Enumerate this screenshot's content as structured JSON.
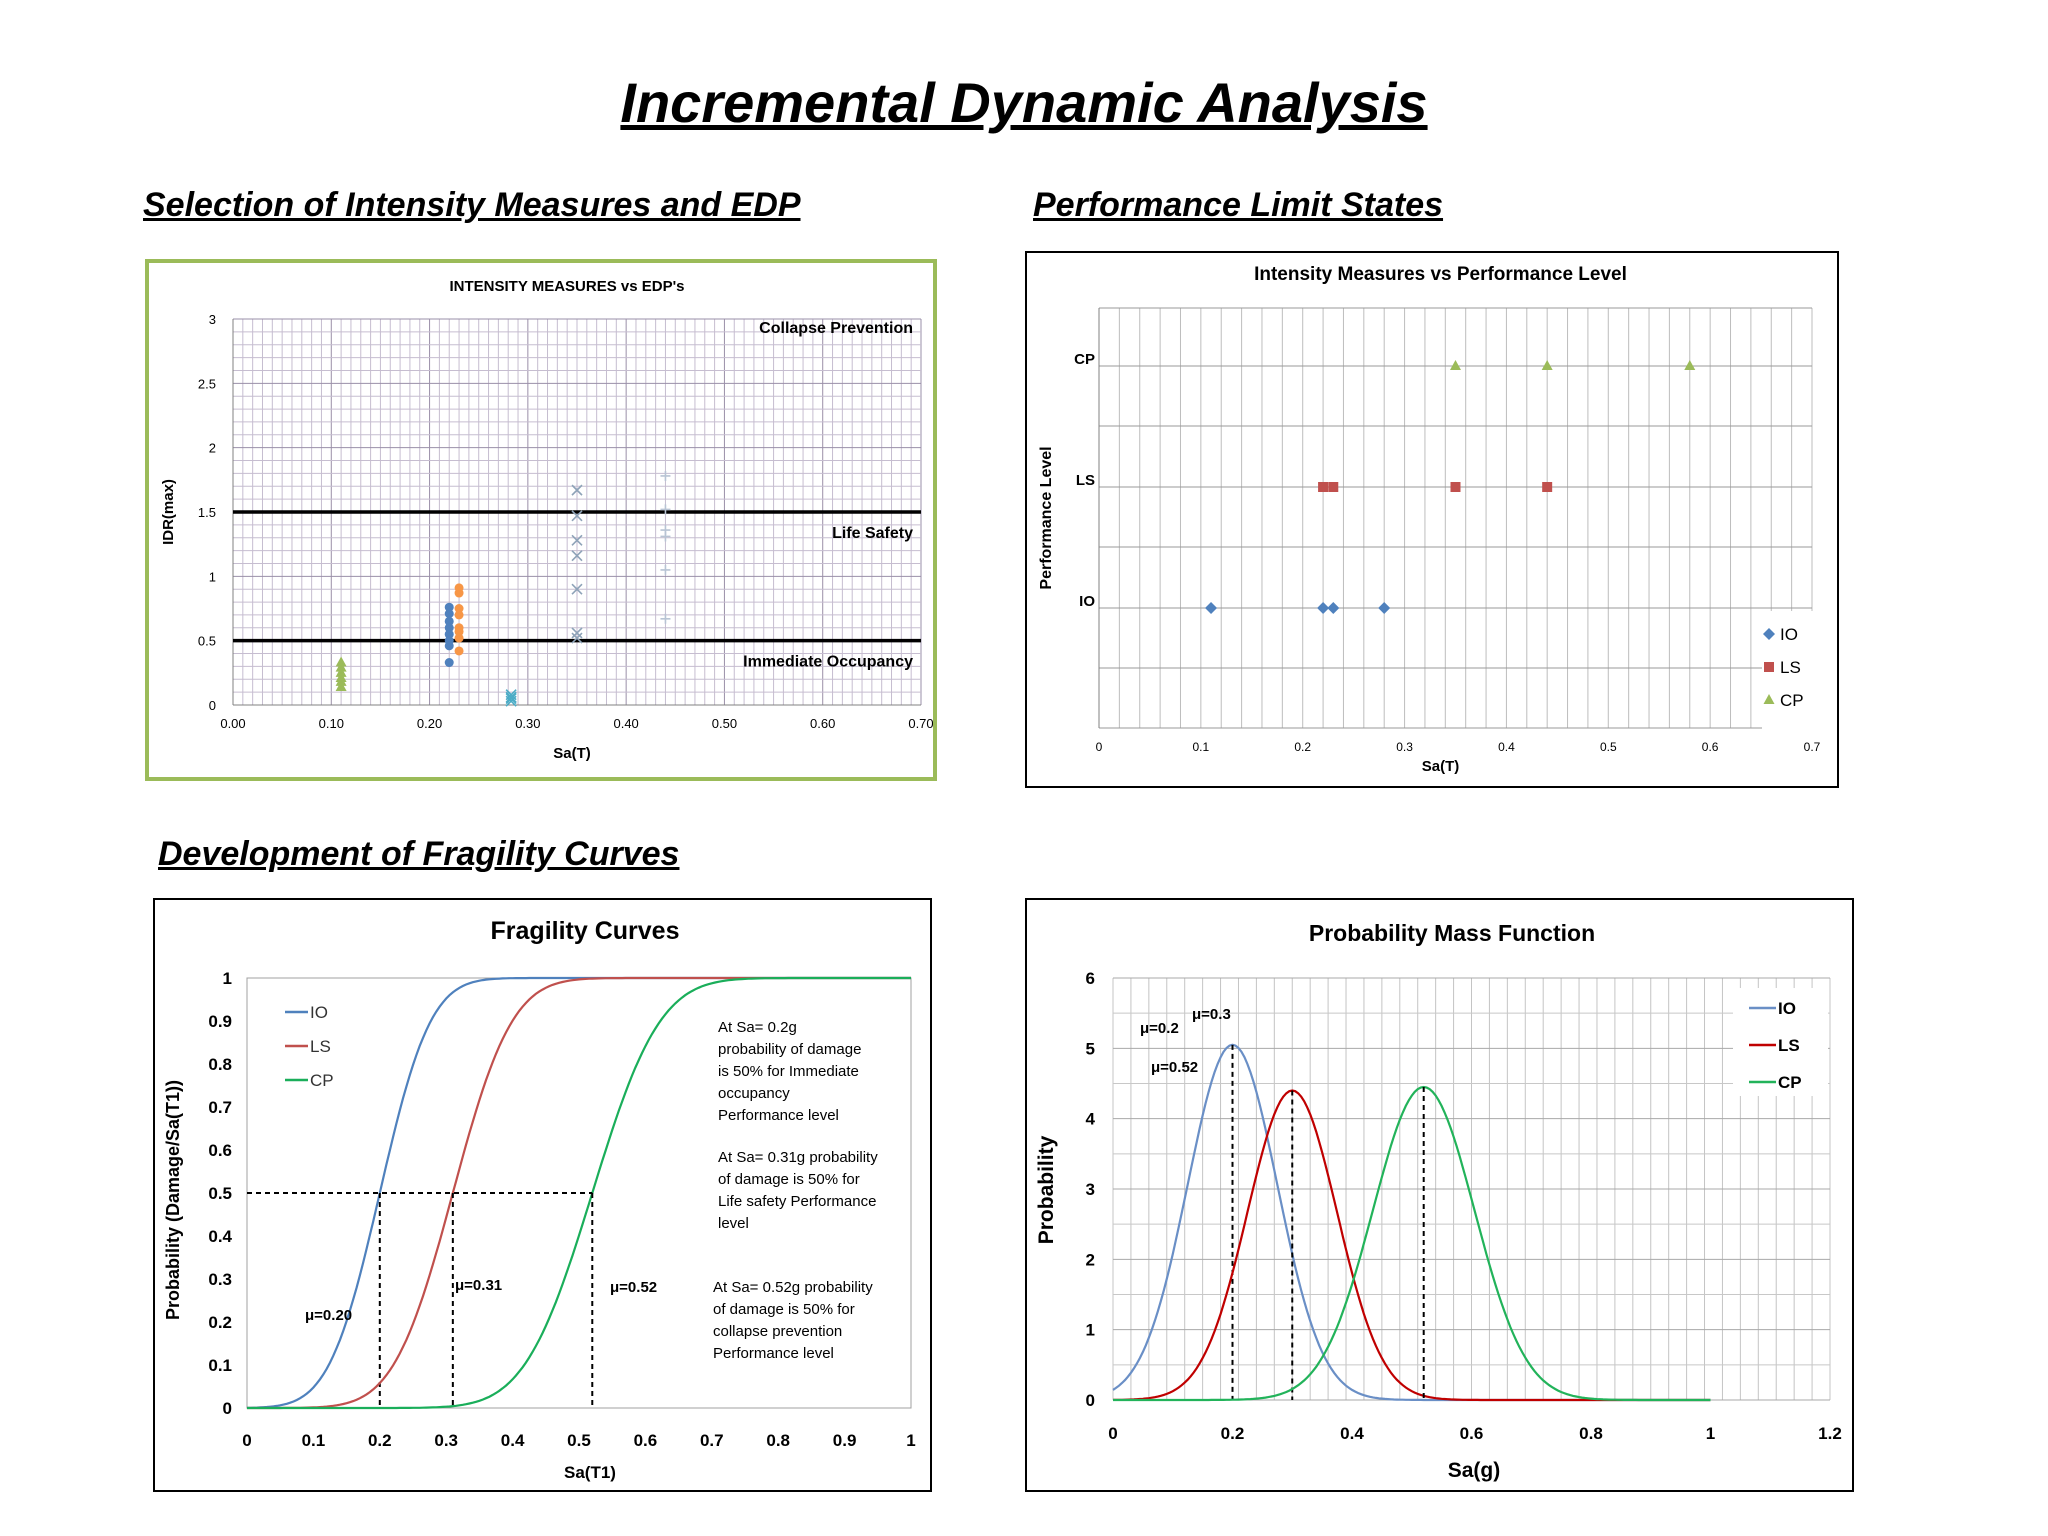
{
  "page": {
    "title": "Incremental Dynamic Analysis",
    "sections": {
      "im_edp": "Selection of Intensity Measures and EDP",
      "limit_states": "Performance Limit States",
      "fragility": "Development of Fragility Curves"
    }
  },
  "colors": {
    "io": "#4F81BD",
    "ls": "#C0504D",
    "cp": "#9BBB59",
    "orange": "#F79646",
    "fragility_cp": "#1AAE5A",
    "pmf_io": "#6A8FC6",
    "pmf_ls": "#C00000",
    "pmf_cp": "#22B35A",
    "panel1_border": "#9BBB59"
  },
  "chart_data": [
    {
      "id": "im-vs-edp",
      "type": "scatter",
      "title": "INTENSITY MEASURES vs EDP's",
      "xlabel": "Sa(T)",
      "ylabel": "IDR(max)",
      "xlim": [
        0,
        0.7
      ],
      "ylim": [
        0,
        3
      ],
      "xticks": [
        "0.00",
        "0.10",
        "0.20",
        "0.30",
        "0.40",
        "0.50",
        "0.60",
        "0.70"
      ],
      "yticks": [
        "0",
        "0.5",
        "1",
        "1.5",
        "2",
        "2.5",
        "3"
      ],
      "grid": true,
      "reference_lines": [
        {
          "y": 1.5,
          "label": "Life Safety"
        },
        {
          "y": 0.5,
          "label": "Immediate Occupancy"
        },
        {
          "y": 3.0,
          "label": "Collapse Prevention"
        }
      ],
      "series": [
        {
          "marker": "triangle",
          "color": "#9BBB59",
          "x": [
            0.11,
            0.11,
            0.11,
            0.11,
            0.11,
            0.11
          ],
          "y": [
            0.33,
            0.29,
            0.25,
            0.21,
            0.18,
            0.14
          ]
        },
        {
          "marker": "circle",
          "color": "#4F81BD",
          "x": [
            0.22,
            0.22,
            0.22,
            0.22,
            0.22,
            0.22,
            0.22,
            0.22
          ],
          "y": [
            0.76,
            0.71,
            0.65,
            0.6,
            0.55,
            0.5,
            0.46,
            0.33
          ]
        },
        {
          "marker": "circle",
          "color": "#F79646",
          "x": [
            0.23,
            0.23,
            0.23,
            0.23,
            0.23,
            0.23,
            0.23,
            0.23
          ],
          "y": [
            0.91,
            0.87,
            0.75,
            0.7,
            0.6,
            0.57,
            0.52,
            0.42
          ]
        },
        {
          "marker": "x",
          "color": "#4BACC6",
          "x": [
            0.283,
            0.283,
            0.283,
            0.283
          ],
          "y": [
            0.08,
            0.06,
            0.05,
            0.03
          ]
        },
        {
          "marker": "x",
          "color": "#8EA3B8",
          "x": [
            0.35,
            0.35,
            0.35,
            0.35,
            0.35,
            0.35,
            0.35
          ],
          "y": [
            1.67,
            1.47,
            1.28,
            1.16,
            0.9,
            0.56,
            0.52
          ]
        },
        {
          "marker": "plus",
          "color": "#B8C4D4",
          "x": [
            0.44,
            0.44,
            0.44,
            0.44,
            0.44,
            0.44
          ],
          "y": [
            1.78,
            1.52,
            1.36,
            1.31,
            1.05,
            0.67
          ]
        }
      ]
    },
    {
      "id": "im-vs-performance",
      "type": "scatter",
      "title": "Intensity Measures vs Performance Level",
      "xlabel": "Sa(T)",
      "ylabel": "Performance Level",
      "xlim": [
        0,
        0.7
      ],
      "xticks": [
        "0",
        "0.1",
        "0.2",
        "0.3",
        "0.4",
        "0.5",
        "0.6",
        "0.7"
      ],
      "levels": [
        "IO",
        "LS",
        "CP"
      ],
      "legend": "bottom-right",
      "series": [
        {
          "name": "IO",
          "marker": "diamond",
          "color": "#4F81BD",
          "x": [
            0.11,
            0.22,
            0.23,
            0.28
          ],
          "level": "IO"
        },
        {
          "name": "LS",
          "marker": "square",
          "color": "#C0504D",
          "x": [
            0.22,
            0.23,
            0.35,
            0.44
          ],
          "level": "LS"
        },
        {
          "name": "CP",
          "marker": "triangle",
          "color": "#9BBB59",
          "x": [
            0.35,
            0.44,
            0.58
          ],
          "level": "CP"
        }
      ]
    },
    {
      "id": "fragility-curves",
      "type": "line",
      "title": "Fragility Curves",
      "xlabel": "Sa(T1)",
      "ylabel": "Probability (Damage/Sa(T1))",
      "xlim": [
        0,
        1
      ],
      "ylim": [
        0,
        1
      ],
      "xticks": [
        "0",
        "0.1",
        "0.2",
        "0.3",
        "0.4",
        "0.5",
        "0.6",
        "0.7",
        "0.8",
        "0.9",
        "1"
      ],
      "yticks": [
        "0",
        "0.1",
        "0.2",
        "0.3",
        "0.4",
        "0.5",
        "0.6",
        "0.7",
        "0.8",
        "0.9",
        "1"
      ],
      "legend": "top-left",
      "series": [
        {
          "name": "IO",
          "color": "#4F81BD",
          "median": 0.2,
          "std": 0.06
        },
        {
          "name": "LS",
          "color": "#C0504D",
          "median": 0.31,
          "std": 0.07
        },
        {
          "name": "CP",
          "color": "#1AAE5A",
          "median": 0.52,
          "std": 0.08
        }
      ],
      "median_labels": [
        {
          "text": "μ=0.20",
          "x": 0.2
        },
        {
          "text": "μ=0.31",
          "x": 0.31
        },
        {
          "text": "μ=0.52",
          "x": 0.52
        }
      ],
      "annotations": [
        [
          "At Sa= 0.2g",
          "probability of damage",
          "is 50%  for Immediate",
          "occupancy",
          "Performance level"
        ],
        [
          "At Sa= 0.31g probability",
          "of damage is 50%  for",
          "Life safety Performance",
          "level"
        ],
        [
          "At Sa= 0.52g probability",
          "of damage is 50%  for",
          "collapse prevention",
          "Performance level"
        ]
      ]
    },
    {
      "id": "probability-mass-function",
      "type": "line",
      "title": "Probability Mass Function",
      "xlabel": "Sa(g)",
      "ylabel": "Probability",
      "xlim": [
        0,
        1.2
      ],
      "ylim": [
        0,
        6
      ],
      "xticks": [
        "0",
        "0.2",
        "0.4",
        "0.6",
        "0.8",
        "1",
        "1.2"
      ],
      "yticks": [
        "0",
        "1",
        "2",
        "3",
        "4",
        "5",
        "6"
      ],
      "legend": "top-right",
      "series": [
        {
          "name": "IO",
          "color": "#6A8FC6",
          "mean": 0.2,
          "peak": 5.05,
          "std": 0.075
        },
        {
          "name": "LS",
          "color": "#C00000",
          "mean": 0.3,
          "peak": 4.4,
          "std": 0.075
        },
        {
          "name": "CP",
          "color": "#22B35A",
          "mean": 0.52,
          "peak": 4.45,
          "std": 0.085
        }
      ],
      "median_labels": [
        {
          "text": "μ=0.2",
          "x": 0.2
        },
        {
          "text": "μ=0.3",
          "x": 0.3
        },
        {
          "text": "μ=0.52",
          "x": 0.52
        }
      ]
    }
  ]
}
